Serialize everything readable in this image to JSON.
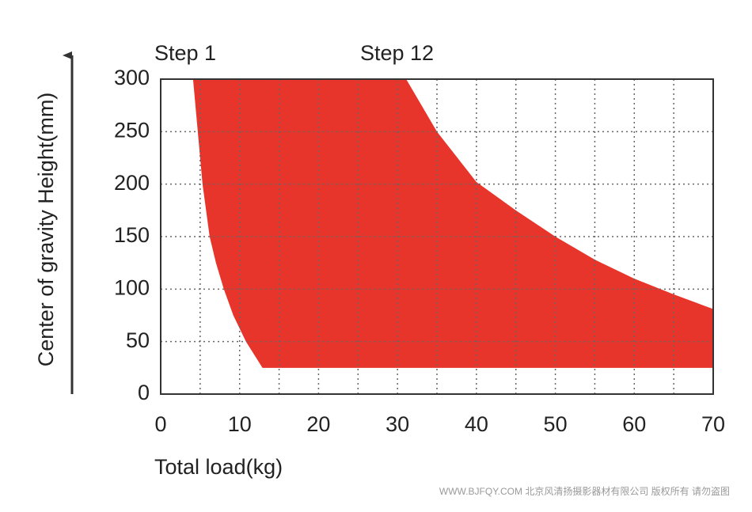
{
  "chart_data": {
    "type": "area",
    "xlabel": "Total load(kg)",
    "ylabel": "Center of gravity Height(mm)",
    "annotations": [
      "Step 1",
      "Step 12"
    ],
    "watermark": "WWW.BJFQY.COM 北京风清扬摄影器材有限公司 版权所有 请勿盗图",
    "color": "#e8352b",
    "x": [
      4.1,
      4.7,
      5.3,
      6.2,
      7,
      8,
      9.2,
      10.8,
      12.9,
      70,
      70,
      65,
      60,
      55,
      50,
      45,
      40,
      35,
      31.1
    ],
    "values": [
      300,
      250,
      200,
      150,
      125,
      100,
      75,
      50,
      25,
      25,
      81,
      95,
      110,
      128,
      150,
      175,
      202,
      250,
      300
    ],
    "xlim": [
      0,
      70
    ],
    "xticks": [
      0,
      10,
      20,
      30,
      40,
      50,
      60,
      70
    ],
    "xgrid": [
      5,
      10,
      15,
      20,
      25,
      30,
      35,
      40,
      45,
      50,
      55,
      60,
      65
    ],
    "ylim": [
      0,
      300
    ],
    "yticks": [
      0,
      50,
      100,
      150,
      200,
      250,
      300
    ],
    "grid": true
  }
}
